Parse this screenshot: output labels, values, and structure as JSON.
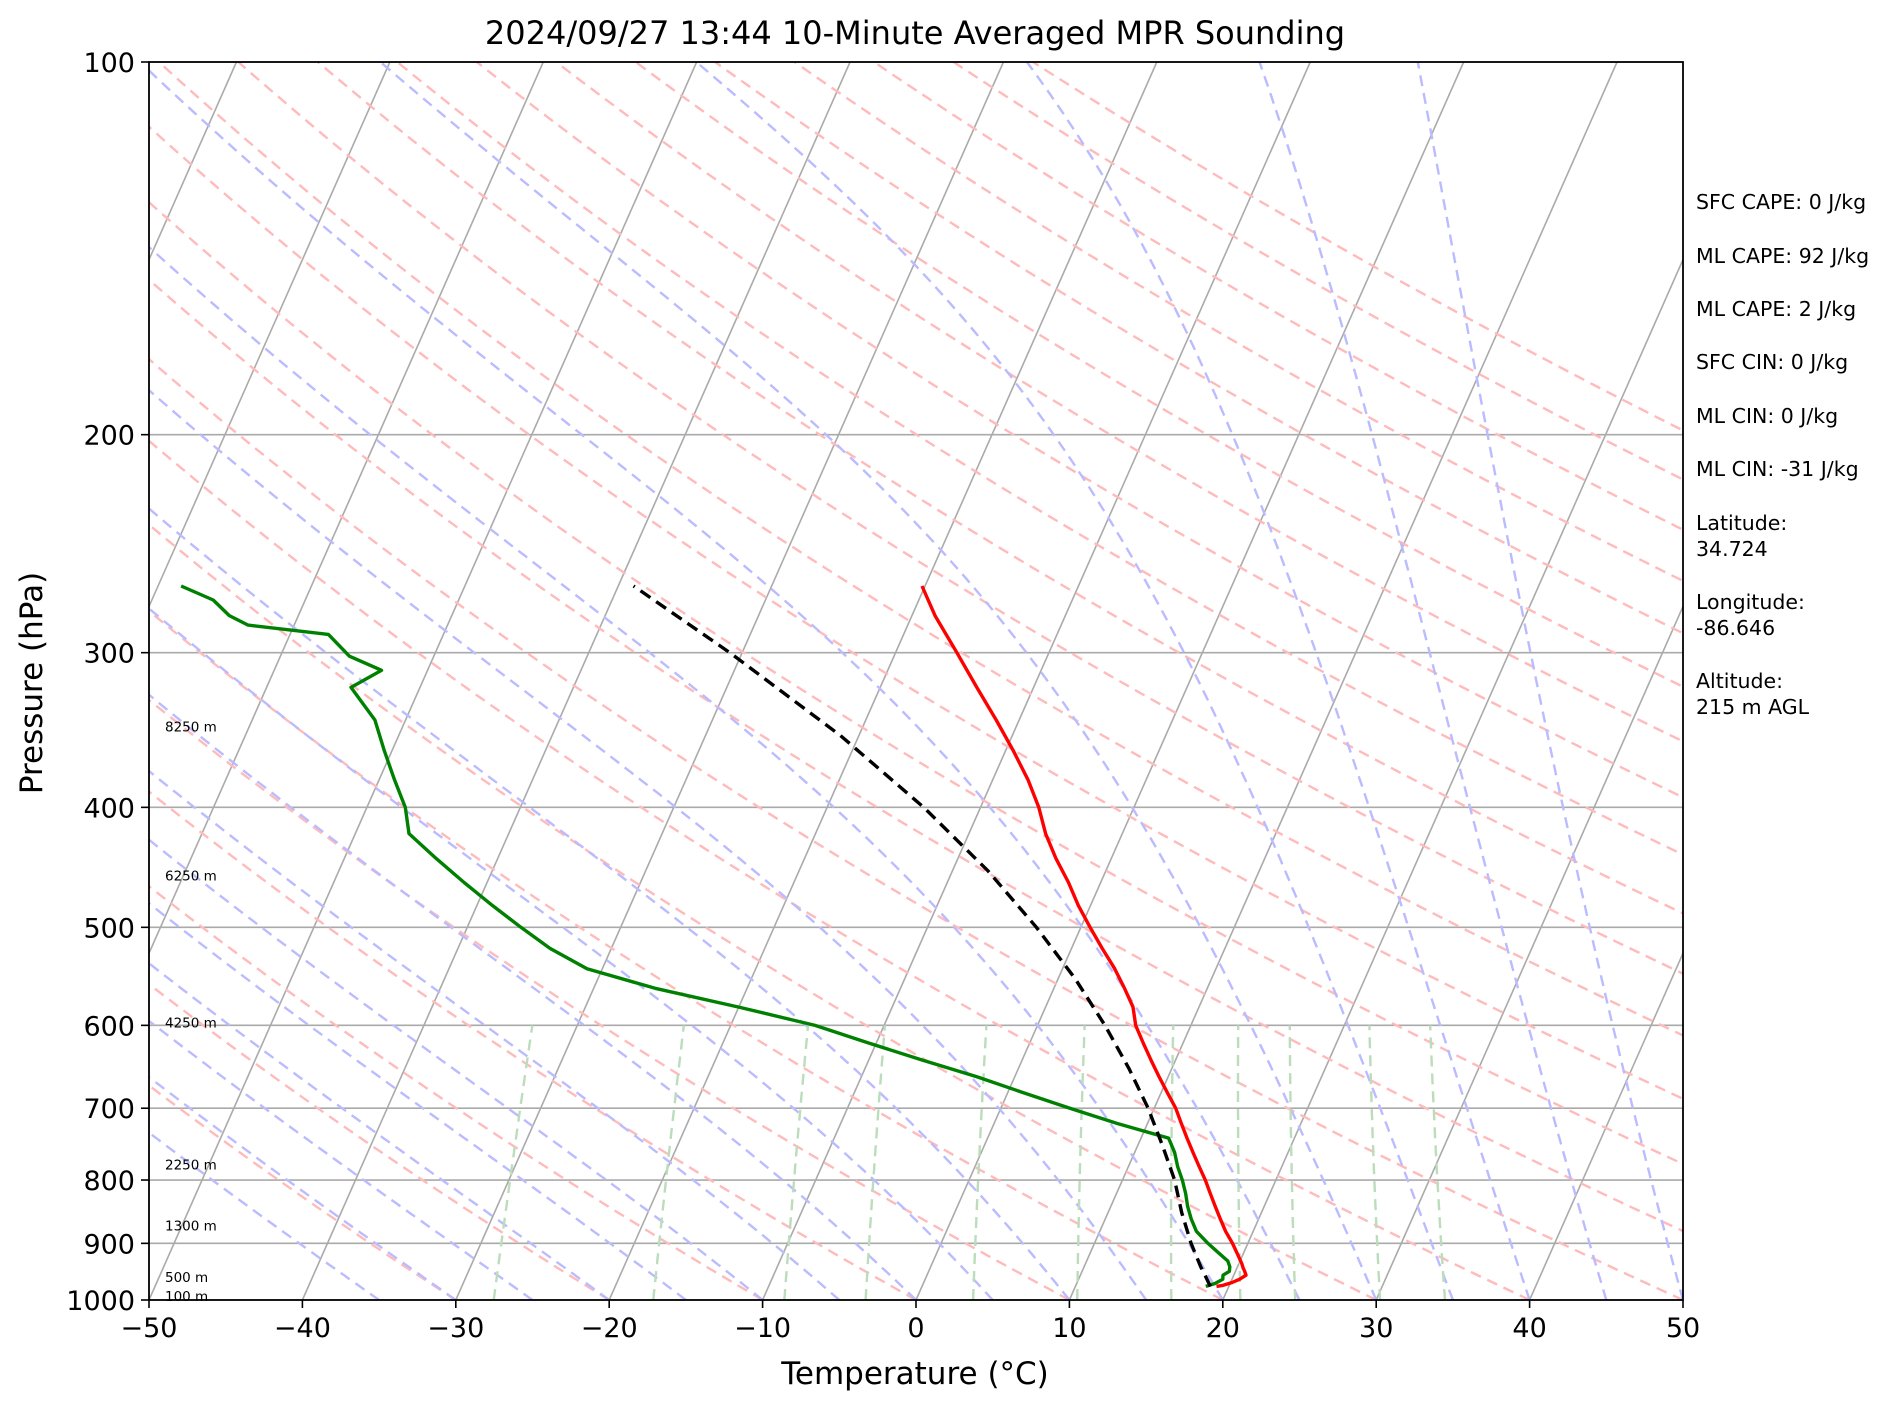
{
  "chart_data": {
    "type": "line",
    "title": "2024/09/27 13:44 10-Minute Averaged MPR Sounding",
    "xlabel": "Temperature (°C)",
    "ylabel": "Pressure (hPa)",
    "xlim": [
      -50,
      50
    ],
    "ylim": [
      1000,
      100
    ],
    "yscale": "log",
    "skew": true,
    "grid": true,
    "x_ticks": [
      "−50",
      "−40",
      "−30",
      "−20",
      "−10",
      "0",
      "10",
      "20",
      "30",
      "40",
      "50"
    ],
    "x_tick_values": [
      -50,
      -40,
      -30,
      -20,
      -10,
      0,
      10,
      20,
      30,
      40,
      50
    ],
    "y_ticks": [
      "100",
      "200",
      "300",
      "400",
      "500",
      "600",
      "700",
      "800",
      "900",
      "1000"
    ],
    "y_tick_values": [
      100,
      200,
      300,
      400,
      500,
      600,
      700,
      800,
      900,
      1000
    ],
    "height_labels": [
      {
        "text": "8250 m",
        "p": 344
      },
      {
        "text": "6250 m",
        "p": 454
      },
      {
        "text": "4250 m",
        "p": 597
      },
      {
        "text": "2250 m",
        "p": 777
      },
      {
        "text": "1300 m",
        "p": 871
      },
      {
        "text": "500 m",
        "p": 958
      },
      {
        "text": "100 m",
        "p": 993
      }
    ],
    "series": [
      {
        "color": "#ff0000",
        "p": [
          975,
          973,
          968,
          962,
          955,
          948,
          942,
          935,
          920,
          900,
          880,
          860,
          840,
          820,
          800,
          780,
          760,
          740,
          720,
          700,
          680,
          660,
          640,
          620,
          600,
          580,
          560,
          540,
          520,
          500,
          480,
          460,
          440,
          420,
          400,
          380,
          360,
          340,
          320,
          300,
          280,
          265
        ],
        "values": [
          19.2,
          19.6,
          20.1,
          20.5,
          20.8,
          20.6,
          20.4,
          20.2,
          19.7,
          19.0,
          18.2,
          17.5,
          16.8,
          16.1,
          15.4,
          14.6,
          13.8,
          13.0,
          12.2,
          11.4,
          10.4,
          9.4,
          8.4,
          7.4,
          6.4,
          5.7,
          4.6,
          3.4,
          2.0,
          0.6,
          -0.8,
          -2.1,
          -3.6,
          -5.0,
          -6.2,
          -7.7,
          -9.5,
          -11.5,
          -13.7,
          -16.0,
          -18.5,
          -20.2
        ]
      },
      {
        "color": "#008000",
        "p": [
          975,
          970,
          962,
          955,
          948,
          940,
          930,
          915,
          900,
          880,
          860,
          840,
          820,
          800,
          780,
          760,
          740,
          720,
          700,
          680,
          660,
          640,
          620,
          600,
          580,
          560,
          540,
          520,
          500,
          480,
          460,
          440,
          420,
          400,
          380,
          360,
          340,
          320,
          310,
          302,
          290,
          285,
          280,
          272,
          265
        ],
        "values": [
          18.5,
          19.0,
          19.4,
          19.3,
          19.6,
          19.5,
          19.2,
          18.3,
          17.4,
          16.3,
          15.6,
          15.0,
          14.5,
          13.9,
          13.2,
          12.6,
          11.8,
          8.0,
          4.5,
          1.0,
          -2.5,
          -6.5,
          -10.5,
          -14.5,
          -20.0,
          -26.0,
          -31.0,
          -34.0,
          -36.5,
          -39.0,
          -41.5,
          -44.0,
          -46.5,
          -47.5,
          -49.0,
          -50.5,
          -52.0,
          -54.5,
          -53.0,
          -55.5,
          -57.5,
          -63.0,
          -64.5,
          -66.0,
          -68.5
        ]
      },
      {
        "color": "#000000",
        "dashed": true,
        "p": [
          975,
          960,
          940,
          900,
          850,
          800,
          750,
          700,
          650,
          600,
          550,
          500,
          450,
          400,
          350,
          300,
          265
        ],
        "values": [
          18.8,
          18.3,
          17.6,
          16.3,
          14.8,
          13.4,
          11.6,
          9.6,
          7.2,
          4.4,
          1.1,
          -2.9,
          -7.7,
          -13.7,
          -21.2,
          -30.8,
          -39.0
        ]
      }
    ],
    "annotations": [
      "SFC CAPE: 0 J/kg",
      "ML CAPE: 92 J/kg",
      "ML CAPE: 2 J/kg",
      "SFC CIN: 0 J/kg",
      "ML CIN: 0 J/kg",
      "ML CIN: -31 J/kg",
      "Latitude:",
      "34.724",
      "Longitude:",
      "-86.646",
      "Altitude:",
      "215 m AGL"
    ],
    "background_lines": {
      "isotherm_color": "#aaaaaa",
      "dry_adiabat_color": "#ffbbbb",
      "moist_adiabat_color": "#bbbbff",
      "mixing_ratio_color": "#bbddbb"
    }
  }
}
